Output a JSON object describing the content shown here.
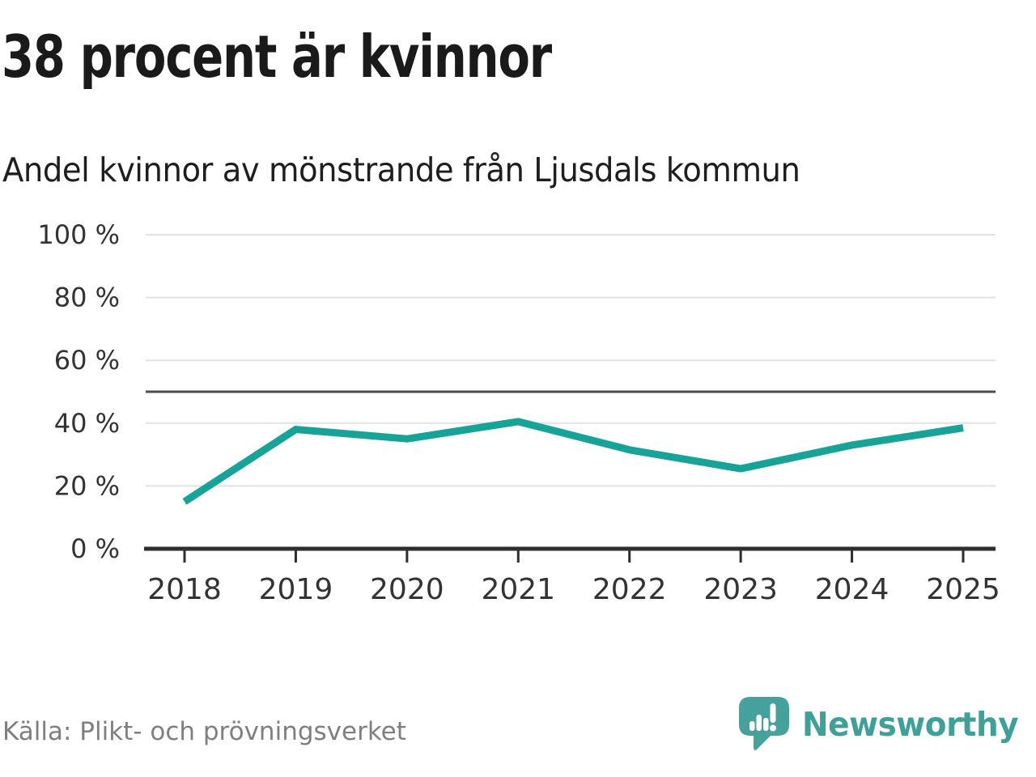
{
  "header": {
    "title": "38 procent är kvinnor",
    "subtitle": "Andel kvinnor av mönstrande från Ljusdals kommun"
  },
  "chart_data": {
    "type": "line",
    "title": "38 procent är kvinnor",
    "subtitle": "Andel kvinnor av mönstrande från Ljusdals kommun",
    "categories": [
      "2018",
      "2019",
      "2020",
      "2021",
      "2022",
      "2023",
      "2024",
      "2025"
    ],
    "series": [
      {
        "name": "Andel kvinnor av mönstrande",
        "values": [
          15,
          38,
          35,
          40.5,
          31.5,
          25.5,
          33,
          38.5
        ]
      }
    ],
    "unit": "%",
    "ylim": [
      0,
      100
    ],
    "yticks": [
      0,
      20,
      40,
      60,
      80,
      100
    ],
    "ytick_suffix": " %",
    "reference_line": 50,
    "grid": true,
    "legend": "none",
    "line_color": "#17a398"
  },
  "footer": {
    "source": "Källa: Plikt- och prövningsverket"
  },
  "branding": {
    "name": "Newsworthy",
    "logo_icon": "speech-bubble-bar-chart-icon",
    "color": "#45a19b"
  }
}
